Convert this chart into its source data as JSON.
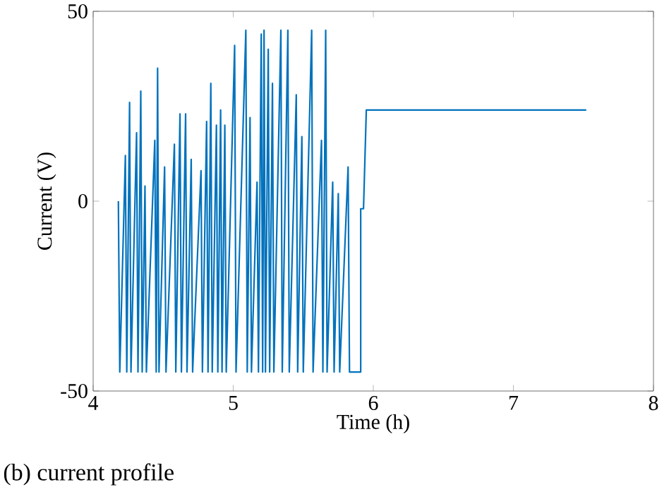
{
  "chart_data": {
    "type": "line",
    "xlabel": "Time (h)",
    "ylabel": "Current (V)",
    "annotations": [
      "(b) current profile"
    ],
    "xlim": [
      4,
      8
    ],
    "ylim": [
      -50,
      50
    ],
    "xticks": [
      4,
      5,
      6,
      7,
      8
    ],
    "yticks": [
      -50,
      0,
      50
    ],
    "marker": "none",
    "line_style": "solid",
    "series": [
      {
        "color": "#0072bd",
        "x": [
          4.18,
          4.19,
          4.23,
          4.24,
          4.26,
          4.27,
          4.31,
          4.32,
          4.34,
          4.35,
          4.37,
          4.38,
          4.44,
          4.45,
          4.46,
          4.47,
          4.51,
          4.52,
          4.58,
          4.59,
          4.62,
          4.63,
          4.66,
          4.67,
          4.7,
          4.71,
          4.77,
          4.78,
          4.81,
          4.82,
          4.84,
          4.85,
          4.88,
          4.89,
          4.91,
          4.92,
          4.94,
          4.95,
          5.01,
          5.02,
          5.09,
          5.1,
          5.12,
          5.13,
          5.17,
          5.18,
          5.2,
          5.21,
          5.22,
          5.23,
          5.25,
          5.26,
          5.28,
          5.29,
          5.34,
          5.35,
          5.39,
          5.4,
          5.45,
          5.46,
          5.49,
          5.5,
          5.56,
          5.57,
          5.63,
          5.64,
          5.66,
          5.67,
          5.71,
          5.72,
          5.75,
          5.76,
          5.82,
          5.83,
          5.91,
          5.91,
          5.93,
          5.95,
          7.52
        ],
        "values": [
          0,
          -45,
          12,
          -45,
          26,
          -45,
          18,
          -45,
          29,
          -45,
          4,
          -45,
          16,
          -45,
          35,
          -45,
          9,
          -45,
          15,
          -45,
          23,
          -45,
          23,
          -45,
          11,
          -45,
          8,
          -45,
          21,
          -45,
          31,
          -45,
          20,
          -45,
          24,
          -45,
          20,
          -45,
          41,
          -45,
          45,
          -45,
          22,
          -45,
          5,
          -45,
          44,
          -45,
          45,
          -45,
          40,
          -45,
          31,
          -45,
          45,
          -45,
          45,
          -45,
          28,
          -45,
          17,
          -45,
          45,
          -45,
          16,
          -45,
          45,
          -45,
          5,
          -45,
          2,
          -45,
          9,
          -45,
          -45,
          -2,
          -2,
          24,
          24
        ]
      }
    ]
  }
}
